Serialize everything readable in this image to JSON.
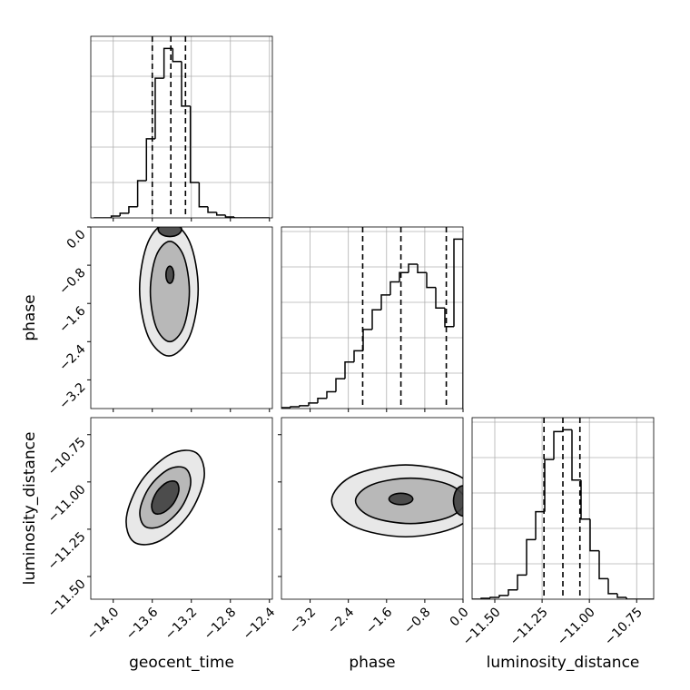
{
  "chart_data": {
    "type": "corner",
    "color": "#000000",
    "parameters": [
      {
        "name": "geocent_time",
        "lim": [
          -14.23,
          -12.37
        ],
        "ticks": [
          {
            "value": -14.0,
            "label": "−14.0"
          },
          {
            "value": -13.6,
            "label": "−13.6"
          },
          {
            "value": -13.2,
            "label": "−13.2"
          },
          {
            "value": -12.8,
            "label": "−12.8"
          },
          {
            "value": -12.4,
            "label": "−12.4"
          }
        ],
        "quantiles": [
          -13.6,
          -13.41,
          -13.26
        ],
        "bins": [
          -14.2,
          -14.11,
          -14.02,
          -13.93,
          -13.84,
          -13.75,
          -13.66,
          -13.57,
          -13.48,
          -13.39,
          -13.3,
          -13.21,
          -13.12,
          -13.03,
          -12.94,
          -12.85,
          -12.76,
          -12.67,
          -12.58,
          -12.49,
          -12.4
        ],
        "counts": [
          0,
          0,
          2,
          5,
          12,
          40,
          85,
          150,
          182,
          168,
          120,
          38,
          12,
          6,
          3,
          1,
          0,
          0,
          0,
          0
        ],
        "ylim": [
          0,
          195
        ]
      },
      {
        "name": "phase",
        "lim": [
          -3.8,
          0.0
        ],
        "ticks": [
          {
            "value": -3.2,
            "label": "−3.2"
          },
          {
            "value": -2.4,
            "label": "−2.4"
          },
          {
            "value": -1.6,
            "label": "−1.6"
          },
          {
            "value": -0.8,
            "label": "−0.8"
          },
          {
            "value": 0.0,
            "label": "0.0"
          }
        ],
        "quantiles": [
          -2.1,
          -1.3,
          -0.35
        ],
        "bins": [
          -3.8,
          -3.61,
          -3.42,
          -3.23,
          -3.04,
          -2.85,
          -2.66,
          -2.47,
          -2.28,
          -2.09,
          -1.9,
          -1.71,
          -1.52,
          -1.33,
          -1.14,
          -0.95,
          -0.76,
          -0.57,
          -0.38,
          -0.19,
          0.0
        ],
        "counts": [
          1,
          2,
          3,
          6,
          11,
          18,
          32,
          50,
          62,
          85,
          106,
          122,
          136,
          146,
          155,
          146,
          130,
          108,
          88,
          182
        ],
        "ylim": [
          0,
          195
        ]
      },
      {
        "name": "luminosity_distance",
        "lim": [
          -11.62,
          -10.66
        ],
        "ticks": [
          {
            "value": -11.5,
            "label": "−11.50"
          },
          {
            "value": -11.25,
            "label": "−11.25"
          },
          {
            "value": -11.0,
            "label": "−11.00"
          },
          {
            "value": -10.75,
            "label": "−10.75"
          }
        ],
        "quantiles": [
          -11.24,
          -11.14,
          -11.05
        ],
        "bins": [
          -11.62,
          -11.572,
          -11.524,
          -11.476,
          -11.428,
          -11.38,
          -11.332,
          -11.284,
          -11.236,
          -11.188,
          -11.14,
          -11.092,
          -11.044,
          -10.996,
          -10.948,
          -10.9,
          -10.852,
          -10.804,
          -10.756,
          -10.708,
          -10.66
        ],
        "counts": [
          0,
          1,
          2,
          4,
          10,
          26,
          64,
          94,
          150,
          180,
          182,
          128,
          86,
          52,
          22,
          6,
          2,
          0,
          0,
          0
        ],
        "ylim": [
          0,
          195
        ]
      }
    ],
    "pairs": [
      {
        "x": 0,
        "y": 1,
        "contours": [
          {
            "x": [
              -13.13,
              -13.218,
              -13.43,
              -13.642,
              -13.73,
              -13.642,
              -13.43,
              -13.218
            ],
            "y": [
              -1.3,
              -0.31,
              0.1,
              -0.31,
              -1.3,
              -2.29,
              -2.7,
              -2.29
            ]
          },
          {
            "x": [
              -13.22,
              -13.279,
              -13.42,
              -13.561,
              -13.62,
              -13.561,
              -13.42,
              -13.279
            ],
            "y": [
              -1.35,
              -0.608,
              -0.3,
              -0.608,
              -1.35,
              -2.092,
              -2.4,
              -2.092
            ]
          },
          {
            "x": [
              -13.38,
              -13.392,
              -13.42,
              -13.448,
              -13.46,
              -13.448,
              -13.42,
              -13.392
            ],
            "y": [
              -1.0,
              -0.873,
              -0.82,
              -0.873,
              -1.0,
              -1.127,
              -1.18,
              -1.127
            ]
          },
          {
            "x": [
              -13.3,
              -13.335,
              -13.42,
              -13.505,
              -13.54,
              -13.505,
              -13.42,
              -13.335
            ],
            "y": [
              -0.05,
              0.056,
              0.1,
              0.056,
              -0.05,
              -0.156,
              -0.2,
              -0.156
            ]
          }
        ]
      },
      {
        "x": 0,
        "y": 2,
        "contours": [
          {
            "x": [
              -13.147,
              -13.069,
              -13.224,
              -13.521,
              -13.787,
              -13.865,
              -13.711,
              -13.413
            ],
            "y": [
              -10.847,
              -10.978,
              -11.171,
              -11.311,
              -11.318,
              -11.187,
              -10.994,
              -10.853
            ]
          },
          {
            "x": [
              -13.259,
              -13.208,
              -13.309,
              -13.502,
              -13.675,
              -13.726,
              -13.626,
              -13.432
            ],
            "y": [
              -10.929,
              -11.014,
              -11.14,
              -11.231,
              -11.235,
              -11.15,
              -11.025,
              -10.933
            ]
          },
          {
            "x": [
              -13.355,
              -13.328,
              -13.382,
              -13.486,
              -13.579,
              -13.606,
              -13.552,
              -13.448
            ],
            "y": [
              -11.0,
              -11.046,
              -11.113,
              -11.162,
              -11.165,
              -11.119,
              -11.051,
              -11.002
            ]
          }
        ]
      },
      {
        "x": 1,
        "y": 2,
        "contours": [
          {
            "x": [
              0.35,
              -0.104,
              -1.2,
              -2.296,
              -2.75,
              -2.296,
              -1.2,
              -0.104
            ],
            "y": [
              -11.1,
              -10.966,
              -10.91,
              -10.966,
              -11.1,
              -11.234,
              -11.29,
              -11.234
            ]
          },
          {
            "x": [
              0.05,
              -0.287,
              -1.1,
              -1.913,
              -2.25,
              -1.913,
              -1.1,
              -0.287
            ],
            "y": [
              -11.1,
              -11.015,
              -10.98,
              -11.015,
              -11.1,
              -11.185,
              -11.22,
              -11.185
            ]
          },
          {
            "x": [
              -1.05,
              -1.123,
              -1.3,
              -1.477,
              -1.55,
              -1.477,
              -1.3,
              -1.123
            ],
            "y": [
              -11.09,
              -11.069,
              -11.06,
              -11.069,
              -11.09,
              -11.111,
              -11.12,
              -11.111
            ]
          },
          {
            "x": [
              0.2,
              0.141,
              0.0,
              -0.141,
              -0.2,
              -0.141,
              0.0,
              0.141
            ],
            "y": [
              -11.1,
              -11.043,
              -11.02,
              -11.043,
              -11.1,
              -11.157,
              -11.18,
              -11.157
            ]
          }
        ]
      }
    ]
  }
}
